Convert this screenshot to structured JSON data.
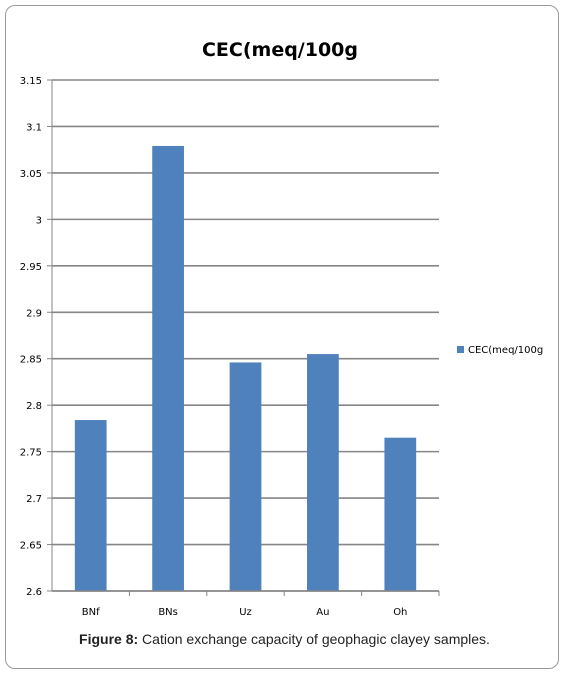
{
  "caption": {
    "label": "Figure 8:",
    "text": " Cation exchange capacity of geophagic clayey samples."
  },
  "colors": {
    "bar": "#4f81bd",
    "grid": "#868686",
    "axis": "#868686",
    "text": "#000000"
  },
  "chart_data": {
    "type": "bar",
    "title": "CEC(meq/100g",
    "categories": [
      "BNf",
      "BNs",
      "Uz",
      "Au",
      "Oh"
    ],
    "series": [
      {
        "name": "CEC(meq/100g",
        "values": [
          2.784,
          3.079,
          2.846,
          2.855,
          2.765
        ]
      }
    ],
    "ylim": [
      2.6,
      3.15
    ],
    "yticks": [
      "2.6",
      "2.65",
      "2.7",
      "2.75",
      "2.8",
      "2.85",
      "2.9",
      "2.95",
      "3",
      "3.05",
      "3.1",
      "3.15"
    ],
    "xlabel": "",
    "ylabel": "",
    "grid": true,
    "legend_position": "right"
  }
}
